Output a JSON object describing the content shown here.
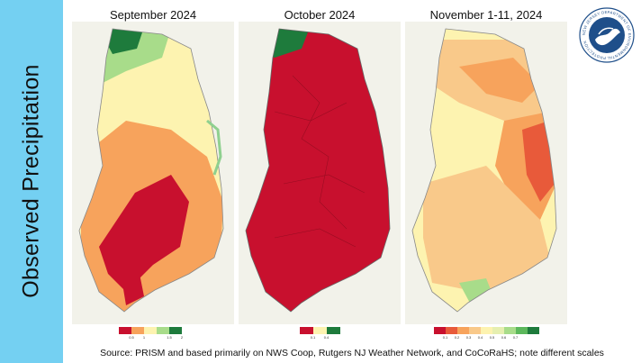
{
  "sidebar": {
    "title": "Observed Precipitation"
  },
  "panels": [
    {
      "title": "September 2024",
      "legend_colors": [
        "#c8102e",
        "#f7a35c",
        "#fdf3b0",
        "#a8dc8a",
        "#1e7b3c"
      ],
      "legend_ticks": [
        "0.5",
        "1",
        "",
        "1.5",
        "2"
      ]
    },
    {
      "title": "October 2024",
      "legend_colors": [
        "#c8102e",
        "#fdf3b0",
        "#1e7b3c"
      ],
      "legend_ticks": [
        "0.1",
        "0.4",
        ""
      ]
    },
    {
      "title": "November 1-11, 2024",
      "legend_colors": [
        "#c8102e",
        "#e85a3a",
        "#f7a35c",
        "#f9c98a",
        "#fdf3b0",
        "#e6efb0",
        "#a8dc8a",
        "#5cb85c",
        "#1e7b3c"
      ],
      "legend_ticks": [
        "0.1",
        "0.2",
        "0.3",
        "0.4",
        "0.5",
        "0.6",
        "0.7",
        "",
        ""
      ]
    }
  ],
  "logo": {
    "text": "NEW JERSEY DEPARTMENT OF ENVIRONMENTAL PROTECTION",
    "icon": "nj-dep-seal-icon"
  },
  "source": "Source: PRISM and based primarily on NWS Coop, Rutgers NJ Weather Network, and CoCoRaHS; note different scales"
}
